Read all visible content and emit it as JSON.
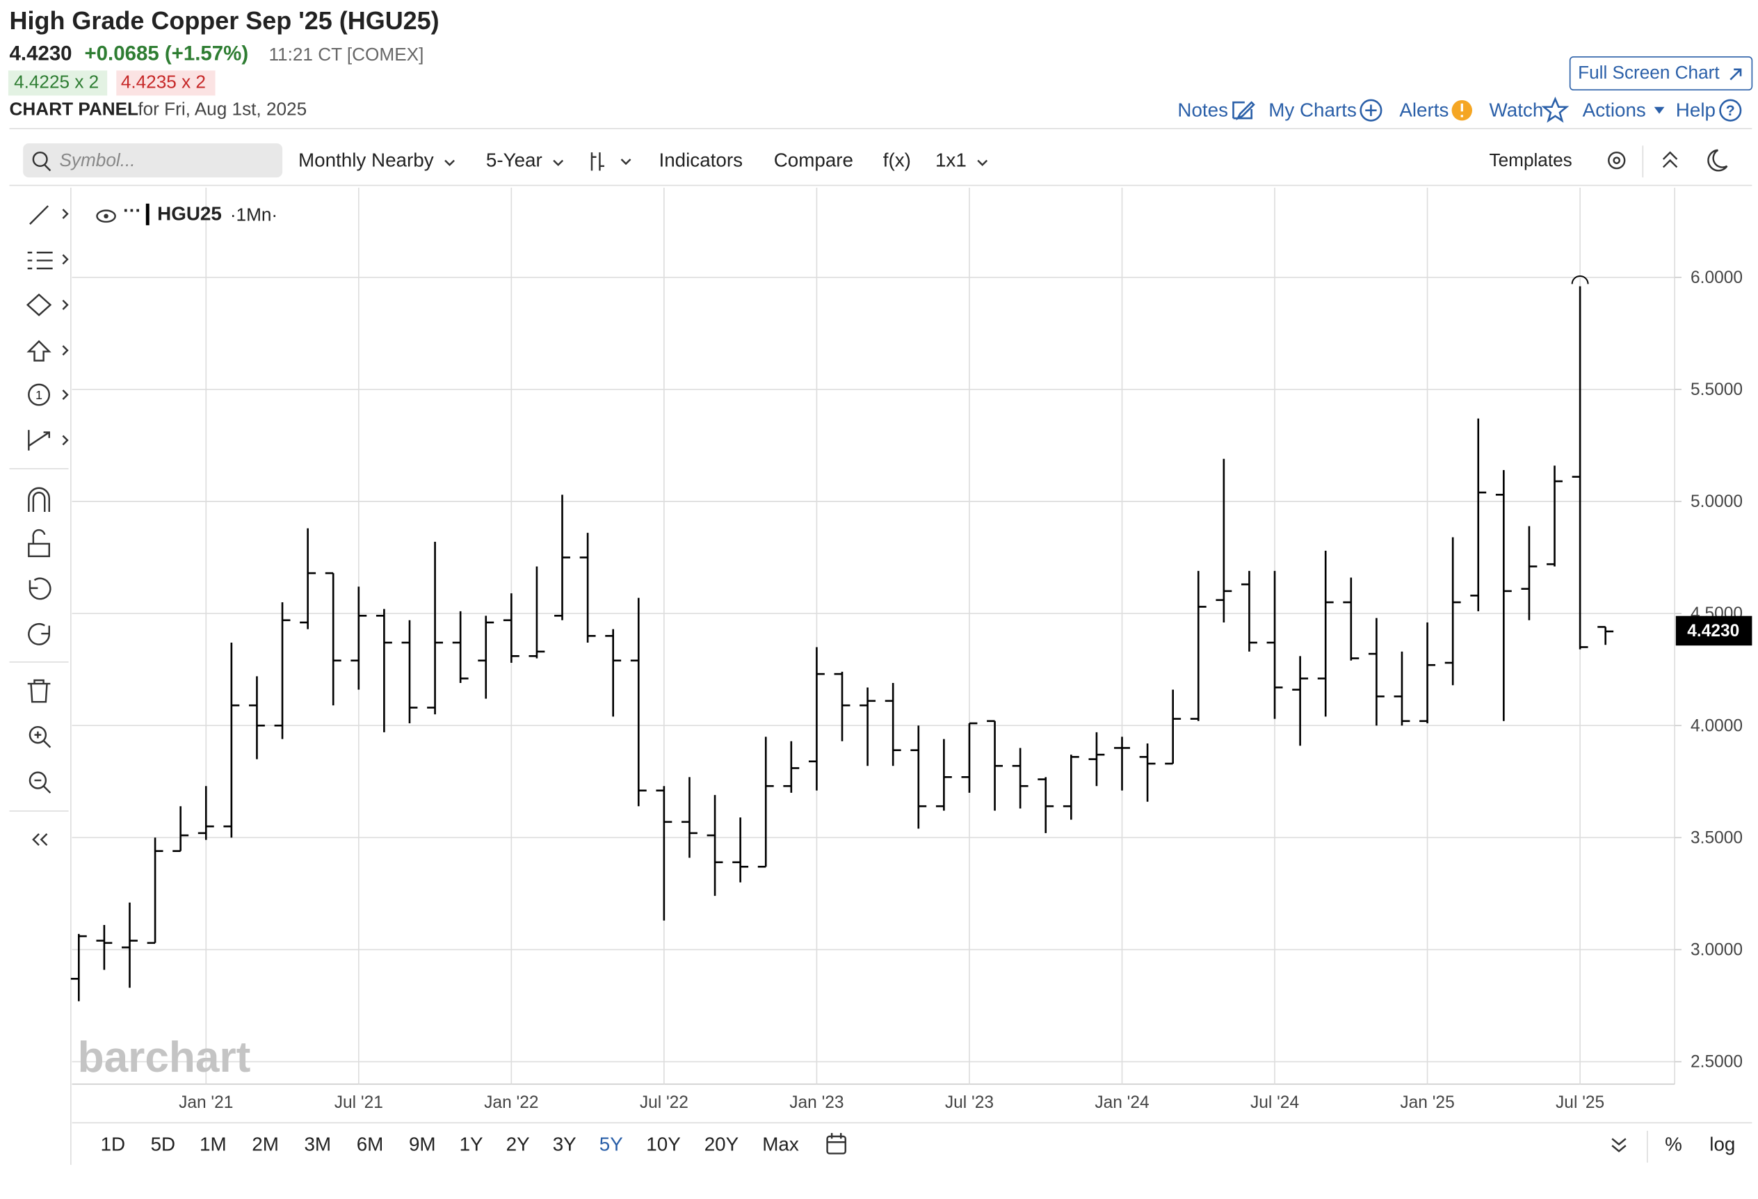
{
  "header": {
    "title": "High Grade Copper Sep '25 (HGU25)",
    "change": "+0.0685 (+1.57%)",
    "time": "11:21 CT [COMEX]",
    "bid": "4.4225 x 2",
    "ask": "4.4235 x 2",
    "panel": "CHART PANEL",
    "panel_date": "for Fri, Aug 1st, 2025",
    "full_screen": "Full Screen Chart",
    "links": [
      "Notes",
      "My Charts",
      "Alerts",
      "Watch",
      "Actions",
      "Help"
    ]
  },
  "toolbar": {
    "search": "Symbol...",
    "items": [
      "Monthly Nearby",
      "5-Year",
      "Indicators",
      "Compare",
      "f(x)",
      "1x1"
    ],
    "templates": "Templates"
  },
  "legend": {
    "symbol": "HGU25",
    "interval": "·1Mn·"
  },
  "watermark": "barchart",
  "periods": [
    "1D",
    "5D",
    "1M",
    "2M",
    "3M",
    "6M",
    "9M",
    "1Y",
    "2Y",
    "3Y",
    "5Y",
    "10Y",
    "20Y",
    "Max"
  ],
  "footer": {
    "percent": "%",
    "log": "log"
  },
  "chart_data": {
    "type": "ohlc",
    "categories": [
      null,
      null,
      null,
      null,
      null,
      "Jan '21",
      null,
      null,
      null,
      null,
      null,
      "Jul '21",
      null,
      null,
      null,
      null,
      null,
      "Jan '22",
      null,
      null,
      null,
      null,
      null,
      "Jul '22",
      null,
      null,
      null,
      null,
      null,
      "Jan '23",
      null,
      null,
      null,
      null,
      null,
      "Jul '23",
      null,
      null,
      null,
      null,
      null,
      "Jan '24",
      null,
      null,
      null,
      null,
      null,
      "Jul '24",
      null,
      null,
      null,
      null,
      null,
      "Jan '25",
      null,
      null,
      null,
      null,
      null,
      "Jul '25",
      null
    ],
    "open": [
      2.87,
      3.04,
      3.01,
      3.03,
      3.44,
      3.52,
      3.55,
      4.09,
      4.0,
      4.46,
      4.68,
      4.29,
      4.49,
      4.37,
      4.08,
      4.37,
      4.29,
      4.47,
      4.31,
      4.49,
      4.75,
      4.4,
      4.29,
      3.71,
      3.57,
      3.51,
      3.39,
      3.37,
      3.73,
      3.84,
      4.23,
      4.09,
      4.11,
      3.89,
      3.64,
      3.77,
      4.02,
      3.82,
      3.76,
      3.64,
      3.85,
      3.9,
      3.86,
      3.83,
      4.03,
      4.56,
      4.63,
      4.37,
      4.16,
      4.21,
      4.55,
      4.32,
      4.13,
      4.02,
      4.28,
      4.58,
      5.03,
      4.61,
      4.72,
      5.11,
      4.44
    ],
    "high": [
      3.07,
      3.11,
      3.21,
      3.5,
      3.64,
      3.73,
      4.37,
      4.22,
      4.55,
      4.88,
      4.68,
      4.62,
      4.52,
      4.47,
      4.82,
      4.51,
      4.49,
      4.59,
      4.71,
      5.03,
      4.86,
      4.43,
      4.57,
      3.73,
      3.77,
      3.69,
      3.59,
      3.95,
      3.93,
      4.35,
      4.24,
      4.17,
      4.19,
      4.0,
      3.94,
      4.01,
      4.02,
      3.9,
      3.77,
      3.87,
      3.97,
      3.95,
      3.92,
      4.16,
      4.69,
      5.19,
      4.69,
      4.69,
      4.31,
      4.78,
      4.66,
      4.48,
      4.33,
      4.46,
      4.84,
      5.37,
      5.14,
      4.89,
      5.16,
      5.96,
      4.44
    ],
    "low": [
      2.77,
      2.91,
      2.83,
      3.03,
      3.44,
      3.49,
      3.5,
      3.85,
      3.94,
      4.43,
      4.09,
      4.16,
      3.97,
      4.01,
      4.05,
      4.19,
      4.12,
      4.28,
      4.3,
      4.47,
      4.37,
      4.04,
      3.64,
      3.13,
      3.41,
      3.24,
      3.3,
      3.37,
      3.7,
      3.71,
      3.93,
      3.82,
      3.82,
      3.54,
      3.62,
      3.7,
      3.62,
      3.63,
      3.52,
      3.58,
      3.73,
      3.71,
      3.66,
      3.83,
      4.02,
      4.46,
      4.33,
      4.03,
      3.91,
      4.04,
      4.29,
      4.0,
      4.0,
      4.01,
      4.18,
      4.51,
      4.02,
      4.47,
      4.71,
      4.34,
      4.36
    ],
    "close": [
      3.06,
      3.03,
      3.04,
      3.44,
      3.51,
      3.55,
      4.09,
      4.0,
      4.47,
      4.68,
      4.29,
      4.49,
      4.37,
      4.08,
      4.37,
      4.21,
      4.46,
      4.31,
      4.33,
      4.75,
      4.4,
      4.29,
      3.71,
      3.57,
      3.52,
      3.39,
      3.37,
      3.73,
      3.81,
      4.23,
      4.09,
      4.11,
      3.89,
      3.64,
      3.77,
      4.01,
      3.82,
      3.73,
      3.64,
      3.86,
      3.87,
      3.9,
      3.83,
      4.03,
      4.53,
      4.6,
      4.37,
      4.17,
      4.21,
      4.55,
      4.3,
      4.13,
      4.02,
      4.27,
      4.55,
      5.04,
      4.6,
      4.71,
      5.09,
      4.35,
      4.42
    ],
    "color": "#000000",
    "last_price": {
      "value": 4.423,
      "label": "4.4230"
    },
    "ylim": [
      2.4,
      6.4
    ],
    "yticks": [
      {
        "value": 2.5,
        "label": "2.5000"
      },
      {
        "value": 3,
        "label": "3.0000"
      },
      {
        "value": 3.5,
        "label": "3.5000"
      },
      {
        "value": 4,
        "label": "4.0000"
      },
      {
        "value": 4.5,
        "label": "4.5000"
      },
      {
        "value": 5,
        "label": "5.0000"
      },
      {
        "value": 5.5,
        "label": "5.5000"
      },
      {
        "value": 6,
        "label": "6.0000"
      }
    ],
    "grid": true
  }
}
